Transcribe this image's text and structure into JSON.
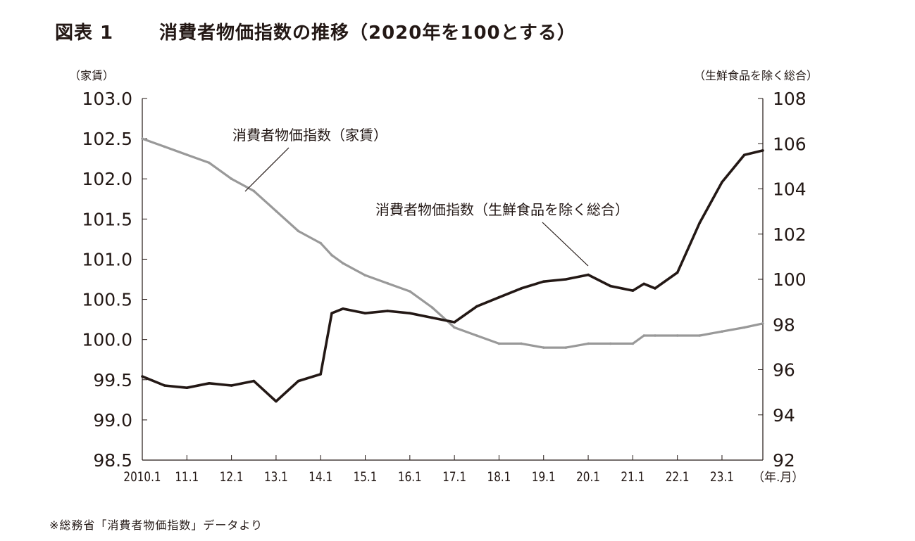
{
  "figure": {
    "number": "図表 1",
    "title": "消費者物価指数の推移（2020年を100とする）",
    "left_unit": "（家賃）",
    "right_unit": "（生鮮食品を除く総合）",
    "source": "※総務省「消費者物価指数」データより",
    "x_unit": "（年.月）"
  },
  "chart_data": {
    "type": "line",
    "x": [
      "2010.1",
      "2010.7",
      "2011.1",
      "2011.7",
      "2012.1",
      "2012.7",
      "2013.1",
      "2013.7",
      "2014.1",
      "2014.4",
      "2014.7",
      "2015.1",
      "2015.7",
      "2016.1",
      "2016.7",
      "2017.1",
      "2017.7",
      "2018.1",
      "2018.7",
      "2019.1",
      "2019.7",
      "2020.1",
      "2020.7",
      "2021.1",
      "2021.4",
      "2021.7",
      "2022.1",
      "2022.7",
      "2023.1",
      "2023.7",
      "2023.12"
    ],
    "x_tick_labels": [
      "2010.1",
      "11.1",
      "12.1",
      "13.1",
      "14.1",
      "15.1",
      "16.1",
      "17.1",
      "18.1",
      "19.1",
      "20.1",
      "21.1",
      "22.1",
      "23.1"
    ],
    "series": [
      {
        "name": "消費者物価指数（家賃）",
        "axis": "left",
        "color": "#999999",
        "values": [
          102.5,
          102.4,
          102.3,
          102.2,
          102.0,
          101.85,
          101.6,
          101.35,
          101.2,
          101.05,
          100.95,
          100.8,
          100.7,
          100.6,
          100.4,
          100.15,
          100.05,
          99.95,
          99.95,
          99.9,
          99.9,
          99.95,
          99.95,
          99.95,
          100.05,
          100.05,
          100.05,
          100.05,
          100.1,
          100.15,
          100.2
        ]
      },
      {
        "name": "消費者物価指数（生鮮食品を除く総合）",
        "axis": "right",
        "color": "#231815",
        "values": [
          95.7,
          95.3,
          95.2,
          95.4,
          95.3,
          95.5,
          94.6,
          95.5,
          95.8,
          98.5,
          98.7,
          98.5,
          98.6,
          98.5,
          98.3,
          98.1,
          98.8,
          99.2,
          99.6,
          99.9,
          100.0,
          100.2,
          99.7,
          99.5,
          99.8,
          99.6,
          100.3,
          102.5,
          104.3,
          105.5,
          105.7
        ]
      }
    ],
    "y_left": {
      "ticks": [
        "103.0",
        "102.5",
        "102.0",
        "101.5",
        "101.0",
        "100.5",
        "100.0",
        "99.5",
        "99.0",
        "98.5"
      ],
      "ylim": [
        98.5,
        103.0
      ]
    },
    "y_right": {
      "ticks": [
        "108",
        "106",
        "104",
        "102",
        "100",
        "98",
        "96",
        "94",
        "92"
      ],
      "ylim": [
        92,
        108
      ]
    },
    "annotations": [
      {
        "text": "消費者物価指数（家賃）",
        "series": 0
      },
      {
        "text": "消費者物価指数（生鮮食品を除く総合）",
        "series": 1
      }
    ],
    "grid": false,
    "legend": "none"
  }
}
